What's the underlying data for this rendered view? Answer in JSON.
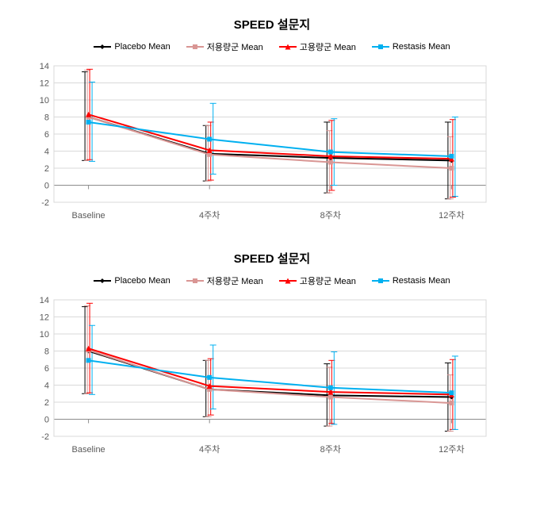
{
  "charts": [
    {
      "title": "SPEED 설문지",
      "title_fontsize": 15,
      "legend_fontsize": 11,
      "tick_fontsize": 11,
      "categories": [
        "Baseline",
        "4주차",
        "8주차",
        "12주차"
      ],
      "ylim": [
        -2,
        14
      ],
      "ytick_step": 2,
      "plot_bg": "#ffffff",
      "grid_color": "#d9d9d9",
      "axis_color": "#8c8c8c",
      "series": [
        {
          "name": "Placebo Mean",
          "color": "#000000",
          "marker": "diamond",
          "marker_size": 6,
          "line_width": 2,
          "values": [
            8.0,
            3.7,
            3.2,
            2.9
          ],
          "err_low": [
            2.9,
            0.5,
            -0.9,
            -1.6
          ],
          "err_high": [
            13.3,
            7.0,
            7.4,
            7.4
          ]
        },
        {
          "name": "저용량군 Mean",
          "color": "#d99694",
          "marker": "square",
          "marker_size": 6,
          "line_width": 2,
          "values": [
            8.0,
            3.6,
            2.7,
            2.0
          ],
          "err_low": [
            2.9,
            0.5,
            -0.9,
            -1.6
          ],
          "err_high": [
            13.5,
            7.0,
            6.4,
            5.7
          ]
        },
        {
          "name": "고용량군 Mean",
          "color": "#ff0000",
          "marker": "triangle",
          "marker_size": 7,
          "line_width": 2,
          "values": [
            8.3,
            4.1,
            3.4,
            3.1
          ],
          "err_low": [
            3.0,
            0.6,
            -0.6,
            -1.4
          ],
          "err_high": [
            13.6,
            7.4,
            7.6,
            7.7
          ]
        },
        {
          "name": "Restasis Mean",
          "color": "#00b0f0",
          "marker": "square",
          "marker_size": 6,
          "line_width": 2,
          "values": [
            7.4,
            5.4,
            3.9,
            3.4
          ],
          "err_low": [
            2.8,
            1.3,
            0.0,
            -1.3
          ],
          "err_high": [
            12.1,
            9.6,
            7.8,
            8.0
          ]
        }
      ]
    },
    {
      "title": "SPEED 설문지",
      "title_fontsize": 15,
      "legend_fontsize": 11,
      "tick_fontsize": 11,
      "categories": [
        "Baseline",
        "4주차",
        "8주차",
        "12주차"
      ],
      "ylim": [
        -2,
        14
      ],
      "ytick_step": 2,
      "plot_bg": "#ffffff",
      "grid_color": "#d9d9d9",
      "axis_color": "#8c8c8c",
      "series": [
        {
          "name": "Placebo Mean",
          "color": "#000000",
          "marker": "diamond",
          "marker_size": 6,
          "line_width": 2,
          "values": [
            8.0,
            3.5,
            2.8,
            2.6
          ],
          "err_low": [
            3.0,
            0.3,
            -0.8,
            -1.4
          ],
          "err_high": [
            13.2,
            6.9,
            6.5,
            6.6
          ]
        },
        {
          "name": "저용량군 Mean",
          "color": "#d99694",
          "marker": "square",
          "marker_size": 6,
          "line_width": 2,
          "values": [
            8.1,
            3.5,
            2.6,
            1.9
          ],
          "err_low": [
            3.0,
            0.3,
            -0.8,
            -1.4
          ],
          "err_high": [
            13.3,
            6.9,
            6.1,
            5.2
          ]
        },
        {
          "name": "고용량군 Mean",
          "color": "#ff0000",
          "marker": "triangle",
          "marker_size": 7,
          "line_width": 2,
          "values": [
            8.3,
            3.9,
            3.2,
            2.9
          ],
          "err_low": [
            3.1,
            0.5,
            -0.5,
            -1.2
          ],
          "err_high": [
            13.6,
            7.1,
            6.9,
            7.0
          ]
        },
        {
          "name": "Restasis Mean",
          "color": "#00b0f0",
          "marker": "square",
          "marker_size": 6,
          "line_width": 2,
          "values": [
            6.9,
            4.9,
            3.7,
            3.1
          ],
          "err_low": [
            2.9,
            1.2,
            -0.6,
            -1.2
          ],
          "err_high": [
            11.0,
            8.7,
            7.9,
            7.4
          ]
        }
      ]
    }
  ]
}
